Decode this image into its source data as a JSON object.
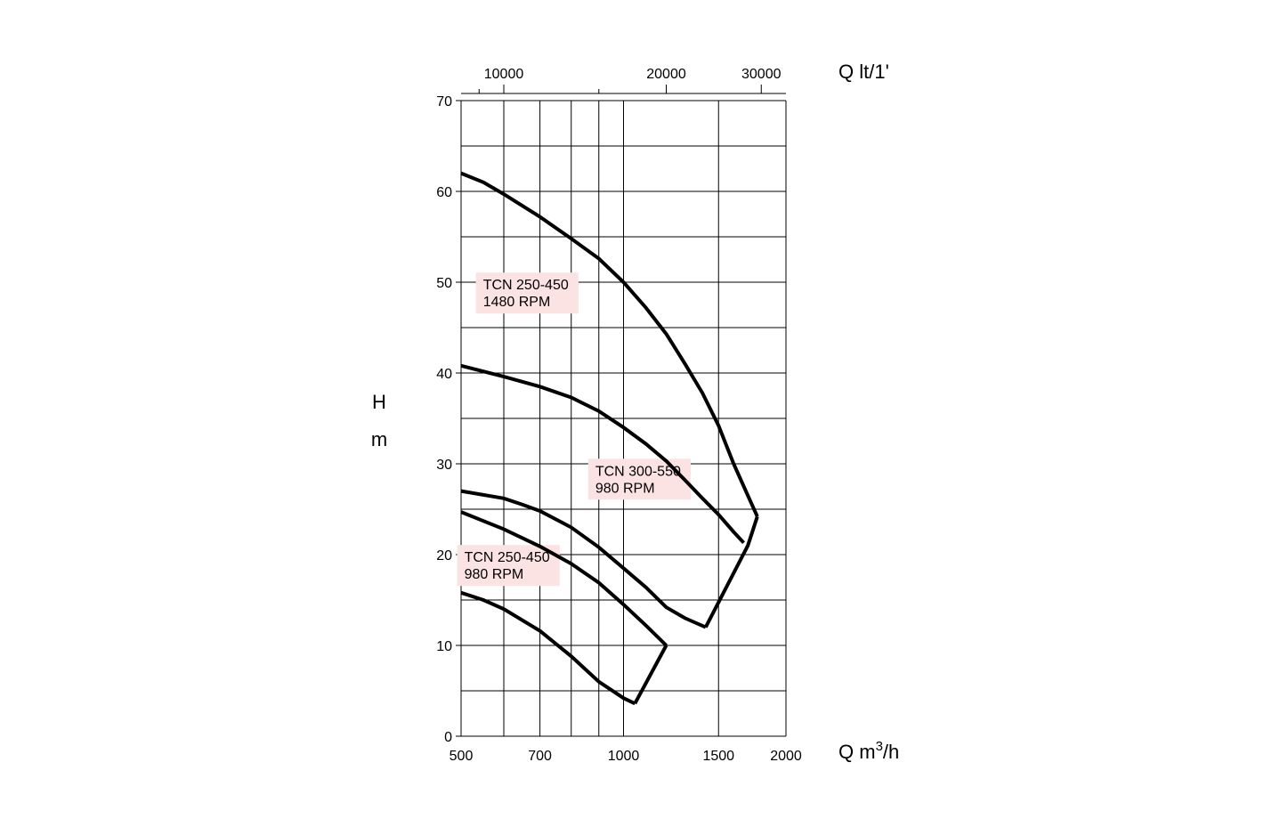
{
  "chart_data": {
    "type": "line",
    "x_axis": {
      "label_prefix": "Q m",
      "label_superscript": "3",
      "label_suffix": "/h",
      "scale": "log",
      "range": [
        500,
        2000
      ],
      "tick_labels": [
        {
          "value": 500,
          "label": "500"
        },
        {
          "value": 700,
          "label": "700"
        },
        {
          "value": 1000,
          "label": "1000"
        },
        {
          "value": 1500,
          "label": "1500"
        },
        {
          "value": 2000,
          "label": "2000"
        }
      ],
      "gridlines": [
        500,
        600,
        700,
        800,
        900,
        1000,
        1500,
        2000
      ]
    },
    "top_axis": {
      "label": "Q lt/1'",
      "tick_labels": [
        {
          "value": 10000,
          "label": "10000"
        },
        {
          "value": 20000,
          "label": "20000"
        },
        {
          "value": 30000,
          "label": "30000"
        }
      ],
      "minor_ticks": [
        9000,
        15000
      ]
    },
    "y_axis": {
      "label_line1": "H",
      "label_line2": "m",
      "range": [
        0,
        70
      ],
      "tick_labels": [
        {
          "value": 0,
          "label": "0"
        },
        {
          "value": 10,
          "label": "10"
        },
        {
          "value": 20,
          "label": "20"
        },
        {
          "value": 30,
          "label": "30"
        },
        {
          "value": 40,
          "label": "40"
        },
        {
          "value": 50,
          "label": "50"
        },
        {
          "value": 60,
          "label": "60"
        },
        {
          "value": 70,
          "label": "70"
        }
      ],
      "gridlines": [
        0,
        5,
        10,
        15,
        20,
        25,
        30,
        35,
        40,
        45,
        50,
        55,
        60,
        65,
        70
      ]
    },
    "grid": true,
    "envelopes": [
      {
        "upper": [
          [
            500,
            62
          ],
          [
            550,
            61
          ],
          [
            600,
            59.7
          ],
          [
            700,
            57.2
          ],
          [
            800,
            54.8
          ],
          [
            900,
            52.6
          ],
          [
            1000,
            50
          ],
          [
            1100,
            47.2
          ],
          [
            1200,
            44.3
          ],
          [
            1300,
            41
          ],
          [
            1400,
            37.8
          ],
          [
            1500,
            34.2
          ],
          [
            1600,
            30
          ],
          [
            1700,
            26.5
          ],
          [
            1770,
            24.2
          ]
        ],
        "lower": [
          [
            500,
            40.8
          ],
          [
            600,
            39.6
          ],
          [
            700,
            38.5
          ],
          [
            800,
            37.3
          ],
          [
            900,
            35.8
          ],
          [
            1000,
            34
          ],
          [
            1100,
            32.2
          ],
          [
            1200,
            30.3
          ],
          [
            1300,
            28.2
          ],
          [
            1400,
            26.2
          ],
          [
            1500,
            24.4
          ],
          [
            1600,
            22.5
          ],
          [
            1670,
            21.3
          ]
        ],
        "right": [
          [
            1770,
            24.2
          ],
          [
            1700,
            21
          ],
          [
            1420,
            12
          ]
        ]
      },
      {
        "upper": [
          [
            500,
            27
          ],
          [
            600,
            26.2
          ],
          [
            650,
            25.5
          ],
          [
            700,
            24.8
          ],
          [
            800,
            23
          ],
          [
            900,
            20.8
          ],
          [
            1000,
            18.5
          ],
          [
            1100,
            16.4
          ],
          [
            1200,
            14.2
          ],
          [
            1300,
            13
          ],
          [
            1420,
            12
          ]
        ],
        "lower": [
          [
            500,
            24.7
          ],
          [
            600,
            22.8
          ],
          [
            700,
            20.9
          ],
          [
            800,
            19
          ],
          [
            900,
            16.9
          ],
          [
            1000,
            14.5
          ],
          [
            1100,
            12.2
          ],
          [
            1200,
            10
          ]
        ],
        "right": [
          [
            1200,
            10
          ],
          [
            1050,
            3.6
          ]
        ]
      },
      {
        "upper": [
          [
            500,
            24.7
          ]
        ],
        "lower": [
          [
            500,
            15.8
          ],
          [
            550,
            15
          ],
          [
            600,
            14
          ],
          [
            700,
            11.6
          ],
          [
            800,
            8.8
          ],
          [
            900,
            6
          ],
          [
            1000,
            4.2
          ],
          [
            1050,
            3.6
          ]
        ],
        "right": []
      }
    ],
    "labels": [
      {
        "line1": "TCN 250-450",
        "line2": "1480 RPM",
        "x": 545,
        "y": 49
      },
      {
        "line1": "TCN 300-550",
        "line2": "980 RPM",
        "x": 880,
        "y": 28.5
      },
      {
        "line1": "TCN 250-450",
        "line2": "980 RPM",
        "x": 503,
        "y": 19
      },
      {
        "colors_note_omitted": true
      }
    ],
    "label_bg_color": "#fbe3e4",
    "curve_color": "#000000"
  }
}
